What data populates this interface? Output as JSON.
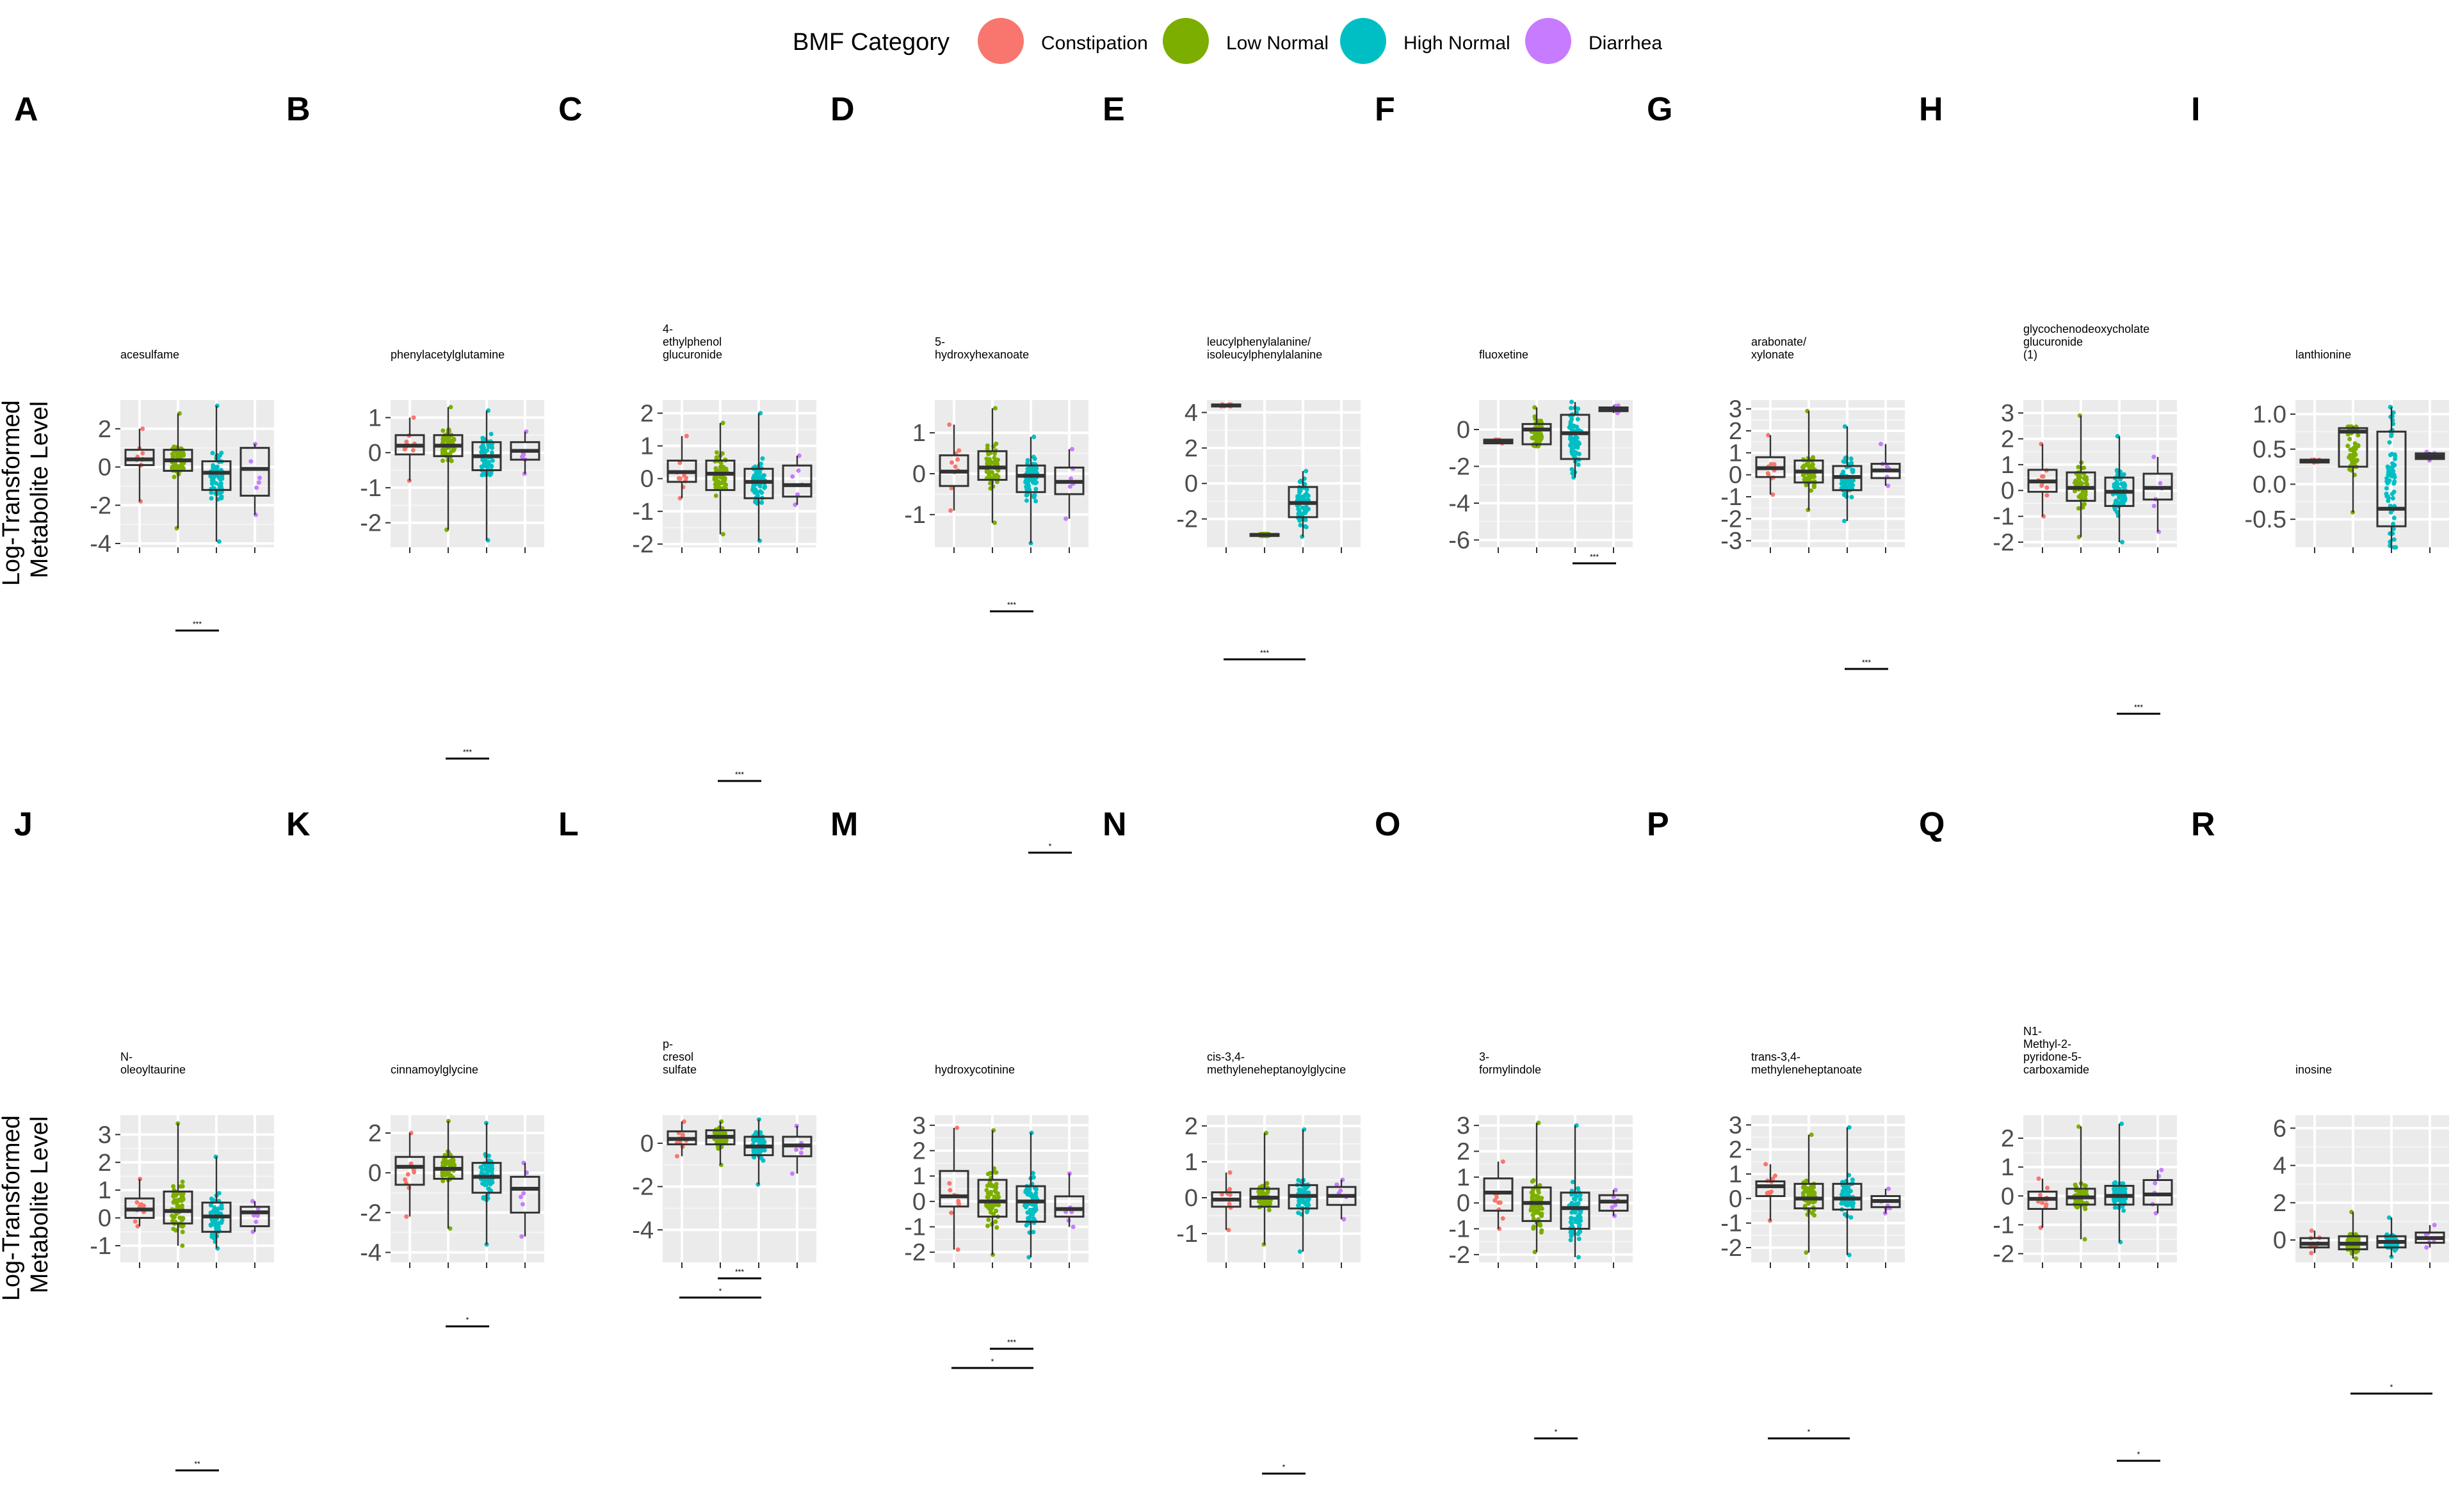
{
  "legend": {
    "title": "BMF Category",
    "items": [
      {
        "label": "Constipation",
        "color": "#F8766D"
      },
      {
        "label": "Low Normal",
        "color": "#7CAE00"
      },
      {
        "label": "High Normal",
        "color": "#00BFC4"
      },
      {
        "label": "Diarrhea",
        "color": "#C77CFF"
      }
    ]
  },
  "ylabel_line1": "Log-Transformed",
  "ylabel_line2": "Metabolite Level",
  "chart_data": [
    {
      "type": "box",
      "panel": "A",
      "title_lines": [
        "acesulfame"
      ],
      "yticks": [
        -4,
        -2,
        0,
        2
      ],
      "ylim": [
        -4.2,
        3.5
      ],
      "boxes": [
        {
          "q1": 0.1,
          "med": 0.4,
          "q3": 0.9,
          "lo": -1.8,
          "hi": 2.0
        },
        {
          "q1": -0.2,
          "med": 0.35,
          "q3": 0.9,
          "lo": -3.2,
          "hi": 2.8
        },
        {
          "q1": -1.2,
          "med": -0.3,
          "q3": 0.3,
          "lo": -3.9,
          "hi": 3.2
        },
        {
          "q1": -1.5,
          "med": -0.1,
          "q3": 1.0,
          "lo": -2.5,
          "hi": 1.2
        }
      ],
      "brackets": [
        {
          "label": "***"
        }
      ]
    },
    {
      "type": "box",
      "panel": "B",
      "title_lines": [
        "phenylacetylglutamine"
      ],
      "yticks": [
        -2,
        -1,
        0,
        1
      ],
      "ylim": [
        -2.7,
        1.5
      ],
      "boxes": [
        {
          "q1": -0.05,
          "med": 0.2,
          "q3": 0.5,
          "lo": -0.8,
          "hi": 1.0
        },
        {
          "q1": -0.1,
          "med": 0.2,
          "q3": 0.5,
          "lo": -2.2,
          "hi": 1.3
        },
        {
          "q1": -0.5,
          "med": -0.1,
          "q3": 0.3,
          "lo": -2.5,
          "hi": 1.2
        },
        {
          "q1": -0.2,
          "med": 0.05,
          "q3": 0.3,
          "lo": -0.6,
          "hi": 0.6
        }
      ],
      "brackets": [
        {
          "label": "***"
        }
      ]
    },
    {
      "type": "box",
      "panel": "C",
      "title_lines": [
        "4-",
        "ethylphenol",
        "glucuronide"
      ],
      "yticks": [
        -2,
        -1,
        0,
        1,
        2
      ],
      "ylim": [
        -2.1,
        2.4
      ],
      "boxes": [
        {
          "q1": -0.1,
          "med": 0.2,
          "q3": 0.55,
          "lo": -0.6,
          "hi": 1.3
        },
        {
          "q1": -0.35,
          "med": 0.15,
          "q3": 0.55,
          "lo": -1.7,
          "hi": 1.7
        },
        {
          "q1": -0.6,
          "med": -0.1,
          "q3": 0.3,
          "lo": -1.9,
          "hi": 2.0
        },
        {
          "q1": -0.55,
          "med": -0.2,
          "q3": 0.4,
          "lo": -0.8,
          "hi": 0.7
        }
      ],
      "brackets": [
        {
          "label": "***"
        }
      ]
    },
    {
      "type": "box",
      "panel": "D",
      "title_lines": [
        "5-",
        "hydroxyhexanoate"
      ],
      "yticks": [
        -1,
        0,
        1
      ],
      "ylim": [
        -1.8,
        1.8
      ],
      "boxes": [
        {
          "q1": -0.3,
          "med": 0.05,
          "q3": 0.45,
          "lo": -0.9,
          "hi": 1.2
        },
        {
          "q1": -0.15,
          "med": 0.15,
          "q3": 0.55,
          "lo": -1.2,
          "hi": 1.6
        },
        {
          "q1": -0.45,
          "med": -0.05,
          "q3": 0.2,
          "lo": -1.7,
          "hi": 0.9
        },
        {
          "q1": -0.5,
          "med": -0.2,
          "q3": 0.15,
          "lo": -1.1,
          "hi": 0.6
        }
      ],
      "brackets": [
        {
          "label": "***"
        }
      ]
    },
    {
      "type": "box",
      "panel": "E",
      "title_lines": [
        "leucylphenylalanine/",
        "isoleucylphenylalanine"
      ],
      "yticks": [
        -2,
        0,
        2,
        4
      ],
      "ylim": [
        -3.6,
        4.7
      ],
      "boxes": [
        {
          "q1": 4.35,
          "med": 4.4,
          "q3": 4.45,
          "lo": 4.35,
          "hi": 4.45
        },
        {
          "q1": -2.95,
          "med": -2.9,
          "q3": -2.85,
          "lo": -2.95,
          "hi": -2.85
        },
        {
          "q1": -1.9,
          "med": -1.1,
          "q3": -0.2,
          "lo": -3.0,
          "hi": 0.7
        },
        null
      ],
      "brackets": [
        {
          "label": "***"
        }
      ]
    },
    {
      "type": "box",
      "panel": "F",
      "title_lines": [
        "fluoxetine"
      ],
      "yticks": [
        -6,
        -4,
        -2,
        0
      ],
      "ylim": [
        -6.4,
        1.6
      ],
      "boxes": [
        {
          "q1": -0.75,
          "med": -0.65,
          "q3": -0.55,
          "lo": -0.75,
          "hi": -0.55
        },
        {
          "q1": -0.8,
          "med": 0.0,
          "q3": 0.3,
          "lo": -0.9,
          "hi": 1.2
        },
        {
          "q1": -1.6,
          "med": -0.2,
          "q3": 0.8,
          "lo": -2.6,
          "hi": 1.5
        },
        {
          "q1": 1.0,
          "med": 1.1,
          "q3": 1.2,
          "lo": 0.9,
          "hi": 1.3
        }
      ],
      "brackets": [
        {
          "label": "***"
        }
      ]
    },
    {
      "type": "box",
      "panel": "G",
      "title_lines": [
        "arabonate/",
        "xylonate"
      ],
      "yticks": [
        -3,
        -2,
        -1,
        0,
        1,
        2,
        3
      ],
      "ylim": [
        -3.3,
        3.4
      ],
      "boxes": [
        {
          "q1": -0.1,
          "med": 0.3,
          "q3": 0.8,
          "lo": -0.9,
          "hi": 1.8
        },
        {
          "q1": -0.35,
          "med": 0.15,
          "q3": 0.65,
          "lo": -1.6,
          "hi": 2.9
        },
        {
          "q1": -0.7,
          "med": -0.1,
          "q3": 0.4,
          "lo": -2.1,
          "hi": 2.2
        },
        {
          "q1": -0.15,
          "med": 0.2,
          "q3": 0.5,
          "lo": -0.5,
          "hi": 1.4
        }
      ],
      "brackets": [
        {
          "label": "***"
        }
      ]
    },
    {
      "type": "box",
      "panel": "H",
      "title_lines": [
        "glycochenodeoxycholate",
        "glucuronide",
        "(1)"
      ],
      "yticks": [
        -2,
        -1,
        0,
        1,
        2,
        3
      ],
      "ylim": [
        -2.2,
        3.5
      ],
      "boxes": [
        {
          "q1": -0.05,
          "med": 0.35,
          "q3": 0.8,
          "lo": -1.0,
          "hi": 1.8
        },
        {
          "q1": -0.4,
          "med": 0.1,
          "q3": 0.7,
          "lo": -1.8,
          "hi": 2.9
        },
        {
          "q1": -0.6,
          "med": -0.05,
          "q3": 0.5,
          "lo": -2.0,
          "hi": 2.1
        },
        {
          "q1": -0.35,
          "med": 0.1,
          "q3": 0.65,
          "lo": -1.6,
          "hi": 1.3
        }
      ],
      "brackets": [
        {
          "label": "***"
        }
      ]
    },
    {
      "type": "box",
      "panel": "I",
      "title_lines": [
        "lanthionine"
      ],
      "yticks": [
        -0.5,
        0.0,
        0.5,
        1.0
      ],
      "ylim": [
        -0.9,
        1.2
      ],
      "ytick_labels": [
        "-0.5",
        "0.0",
        "0.5",
        "1.0"
      ],
      "boxes": [
        {
          "q1": 0.31,
          "med": 0.33,
          "q3": 0.35,
          "lo": 0.31,
          "hi": 0.35
        },
        {
          "q1": 0.25,
          "med": 0.75,
          "q3": 0.8,
          "lo": -0.4,
          "hi": 0.82
        },
        {
          "q1": -0.6,
          "med": -0.35,
          "q3": 0.75,
          "lo": -0.9,
          "hi": 1.1
        },
        {
          "q1": 0.36,
          "med": 0.4,
          "q3": 0.44,
          "lo": 0.34,
          "hi": 0.46
        }
      ],
      "brackets": []
    },
    {
      "type": "box",
      "panel": "J",
      "title_lines": [
        "N-",
        "oleoyltaurine"
      ],
      "yticks": [
        -1,
        0,
        1,
        2,
        3
      ],
      "ylim": [
        -1.6,
        3.7
      ],
      "boxes": [
        {
          "q1": 0.0,
          "med": 0.3,
          "q3": 0.7,
          "lo": -0.3,
          "hi": 1.4
        },
        {
          "q1": -0.2,
          "med": 0.25,
          "q3": 0.95,
          "lo": -1.0,
          "hi": 3.4
        },
        {
          "q1": -0.5,
          "med": 0.05,
          "q3": 0.55,
          "lo": -1.1,
          "hi": 2.2
        },
        {
          "q1": -0.3,
          "med": 0.2,
          "q3": 0.4,
          "lo": -0.5,
          "hi": 0.6
        }
      ],
      "brackets": [
        {
          "label": "**"
        }
      ]
    },
    {
      "type": "box",
      "panel": "K",
      "title_lines": [
        "cinnamoylglycine"
      ],
      "yticks": [
        -4,
        -2,
        0,
        2
      ],
      "ylim": [
        -4.5,
        2.9
      ],
      "boxes": [
        {
          "q1": -0.6,
          "med": 0.3,
          "q3": 0.8,
          "lo": -2.2,
          "hi": 2.0
        },
        {
          "q1": -0.3,
          "med": 0.2,
          "q3": 0.8,
          "lo": -2.8,
          "hi": 2.6
        },
        {
          "q1": -1.0,
          "med": -0.2,
          "q3": 0.5,
          "lo": -3.6,
          "hi": 2.5
        },
        {
          "q1": -2.0,
          "med": -0.8,
          "q3": -0.2,
          "lo": -3.2,
          "hi": 0.5
        }
      ],
      "brackets": [
        {
          "label": "*"
        }
      ]
    },
    {
      "type": "box",
      "panel": "L",
      "title_lines": [
        "p-",
        "cresol",
        "sulfate"
      ],
      "yticks": [
        -4,
        -2,
        0
      ],
      "ylim": [
        -5.5,
        1.3
      ],
      "boxes": [
        {
          "q1": -0.05,
          "med": 0.2,
          "q3": 0.55,
          "lo": -0.6,
          "hi": 1.0
        },
        {
          "q1": -0.05,
          "med": 0.3,
          "q3": 0.6,
          "lo": -1.0,
          "hi": 1.0
        },
        {
          "q1": -0.55,
          "med": -0.15,
          "q3": 0.3,
          "lo": -1.9,
          "hi": 1.1
        },
        {
          "q1": -0.6,
          "med": -0.1,
          "q3": 0.3,
          "lo": -1.4,
          "hi": 0.8
        }
      ],
      "brackets": [
        {
          "label": "***"
        },
        {
          "label": "*"
        }
      ]
    },
    {
      "type": "box",
      "panel": "M",
      "title_lines": [
        "hydroxycotinine"
      ],
      "yticks": [
        -2,
        -1,
        0,
        1,
        2,
        3
      ],
      "ylim": [
        -2.4,
        3.4
      ],
      "boxes": [
        {
          "q1": -0.2,
          "med": 0.2,
          "q3": 1.2,
          "lo": -1.9,
          "hi": 2.9
        },
        {
          "q1": -0.6,
          "med": 0.0,
          "q3": 0.85,
          "lo": -2.1,
          "hi": 2.8
        },
        {
          "q1": -0.8,
          "med": 0.0,
          "q3": 0.6,
          "lo": -2.2,
          "hi": 2.7
        },
        {
          "q1": -0.6,
          "med": -0.3,
          "q3": 0.2,
          "lo": -1.0,
          "hi": 1.1
        }
      ],
      "brackets": [
        {
          "label": "***"
        },
        {
          "label": "*"
        },
        {
          "label": "*"
        }
      ]
    },
    {
      "type": "box",
      "panel": "N",
      "title_lines": [
        "cis-3,4-",
        "methyleneheptanoylglycine"
      ],
      "yticks": [
        -1,
        0,
        1,
        2
      ],
      "ylim": [
        -1.8,
        2.3
      ],
      "boxes": [
        {
          "q1": -0.25,
          "med": -0.05,
          "q3": 0.15,
          "lo": -0.9,
          "hi": 0.7
        },
        {
          "q1": -0.25,
          "med": 0.0,
          "q3": 0.25,
          "lo": -1.3,
          "hi": 1.8
        },
        {
          "q1": -0.3,
          "med": 0.05,
          "q3": 0.35,
          "lo": -1.5,
          "hi": 1.9
        },
        {
          "q1": -0.2,
          "med": 0.05,
          "q3": 0.3,
          "lo": -0.6,
          "hi": 0.5
        }
      ],
      "brackets": [
        {
          "label": "*"
        }
      ]
    },
    {
      "type": "box",
      "panel": "O",
      "title_lines": [
        "3-",
        "formylindole"
      ],
      "yticks": [
        -2,
        -1,
        0,
        1,
        2,
        3
      ],
      "ylim": [
        -2.3,
        3.4
      ],
      "boxes": [
        {
          "q1": -0.3,
          "med": 0.4,
          "q3": 0.95,
          "lo": -1.0,
          "hi": 1.6
        },
        {
          "q1": -0.7,
          "med": 0.0,
          "q3": 0.6,
          "lo": -1.9,
          "hi": 3.1
        },
        {
          "q1": -1.0,
          "med": -0.2,
          "q3": 0.4,
          "lo": -2.1,
          "hi": 3.0
        },
        {
          "q1": -0.3,
          "med": 0.05,
          "q3": 0.3,
          "lo": -0.5,
          "hi": 0.5
        }
      ],
      "brackets": [
        {
          "label": "*"
        }
      ]
    },
    {
      "type": "box",
      "panel": "P",
      "title_lines": [
        "trans-3,4-",
        "methyleneheptanoate"
      ],
      "yticks": [
        -2,
        -1,
        0,
        1,
        2,
        3
      ],
      "ylim": [
        -2.6,
        3.4
      ],
      "boxes": [
        {
          "q1": 0.1,
          "med": 0.5,
          "q3": 0.7,
          "lo": -0.9,
          "hi": 1.4
        },
        {
          "q1": -0.4,
          "med": 0.0,
          "q3": 0.6,
          "lo": -2.2,
          "hi": 2.6
        },
        {
          "q1": -0.45,
          "med": 0.0,
          "q3": 0.6,
          "lo": -2.3,
          "hi": 2.9
        },
        {
          "q1": -0.35,
          "med": -0.1,
          "q3": 0.1,
          "lo": -0.6,
          "hi": 0.4
        }
      ],
      "brackets": [
        {
          "label": "*"
        }
      ]
    },
    {
      "type": "box",
      "panel": "Q",
      "title_lines": [
        "N1-",
        "Methyl-2-",
        "pyridone-5-",
        "carboxamide"
      ],
      "yticks": [
        -2,
        -1,
        0,
        1,
        2
      ],
      "ylim": [
        -2.3,
        2.8
      ],
      "boxes": [
        {
          "q1": -0.45,
          "med": -0.1,
          "q3": 0.15,
          "lo": -1.1,
          "hi": 0.6
        },
        {
          "q1": -0.3,
          "med": -0.05,
          "q3": 0.25,
          "lo": -1.5,
          "hi": 2.4
        },
        {
          "q1": -0.3,
          "med": 0.0,
          "q3": 0.35,
          "lo": -1.6,
          "hi": 2.5
        },
        {
          "q1": -0.3,
          "med": 0.05,
          "q3": 0.55,
          "lo": -0.6,
          "hi": 0.9
        }
      ],
      "brackets": [
        {
          "label": "*"
        }
      ]
    },
    {
      "type": "box",
      "panel": "R",
      "title_lines": [
        "inosine"
      ],
      "yticks": [
        0,
        2,
        4,
        6
      ],
      "ylim": [
        -1.2,
        6.7
      ],
      "boxes": [
        {
          "q1": -0.4,
          "med": -0.2,
          "q3": 0.1,
          "lo": -0.7,
          "hi": 0.5
        },
        {
          "q1": -0.5,
          "med": -0.2,
          "q3": 0.2,
          "lo": -1.0,
          "hi": 1.5
        },
        {
          "q1": -0.4,
          "med": -0.1,
          "q3": 0.2,
          "lo": -0.9,
          "hi": 1.2
        },
        {
          "q1": -0.15,
          "med": 0.1,
          "q3": 0.4,
          "lo": -0.4,
          "hi": 0.8
        }
      ],
      "brackets": [
        {
          "label": "*"
        }
      ]
    }
  ]
}
